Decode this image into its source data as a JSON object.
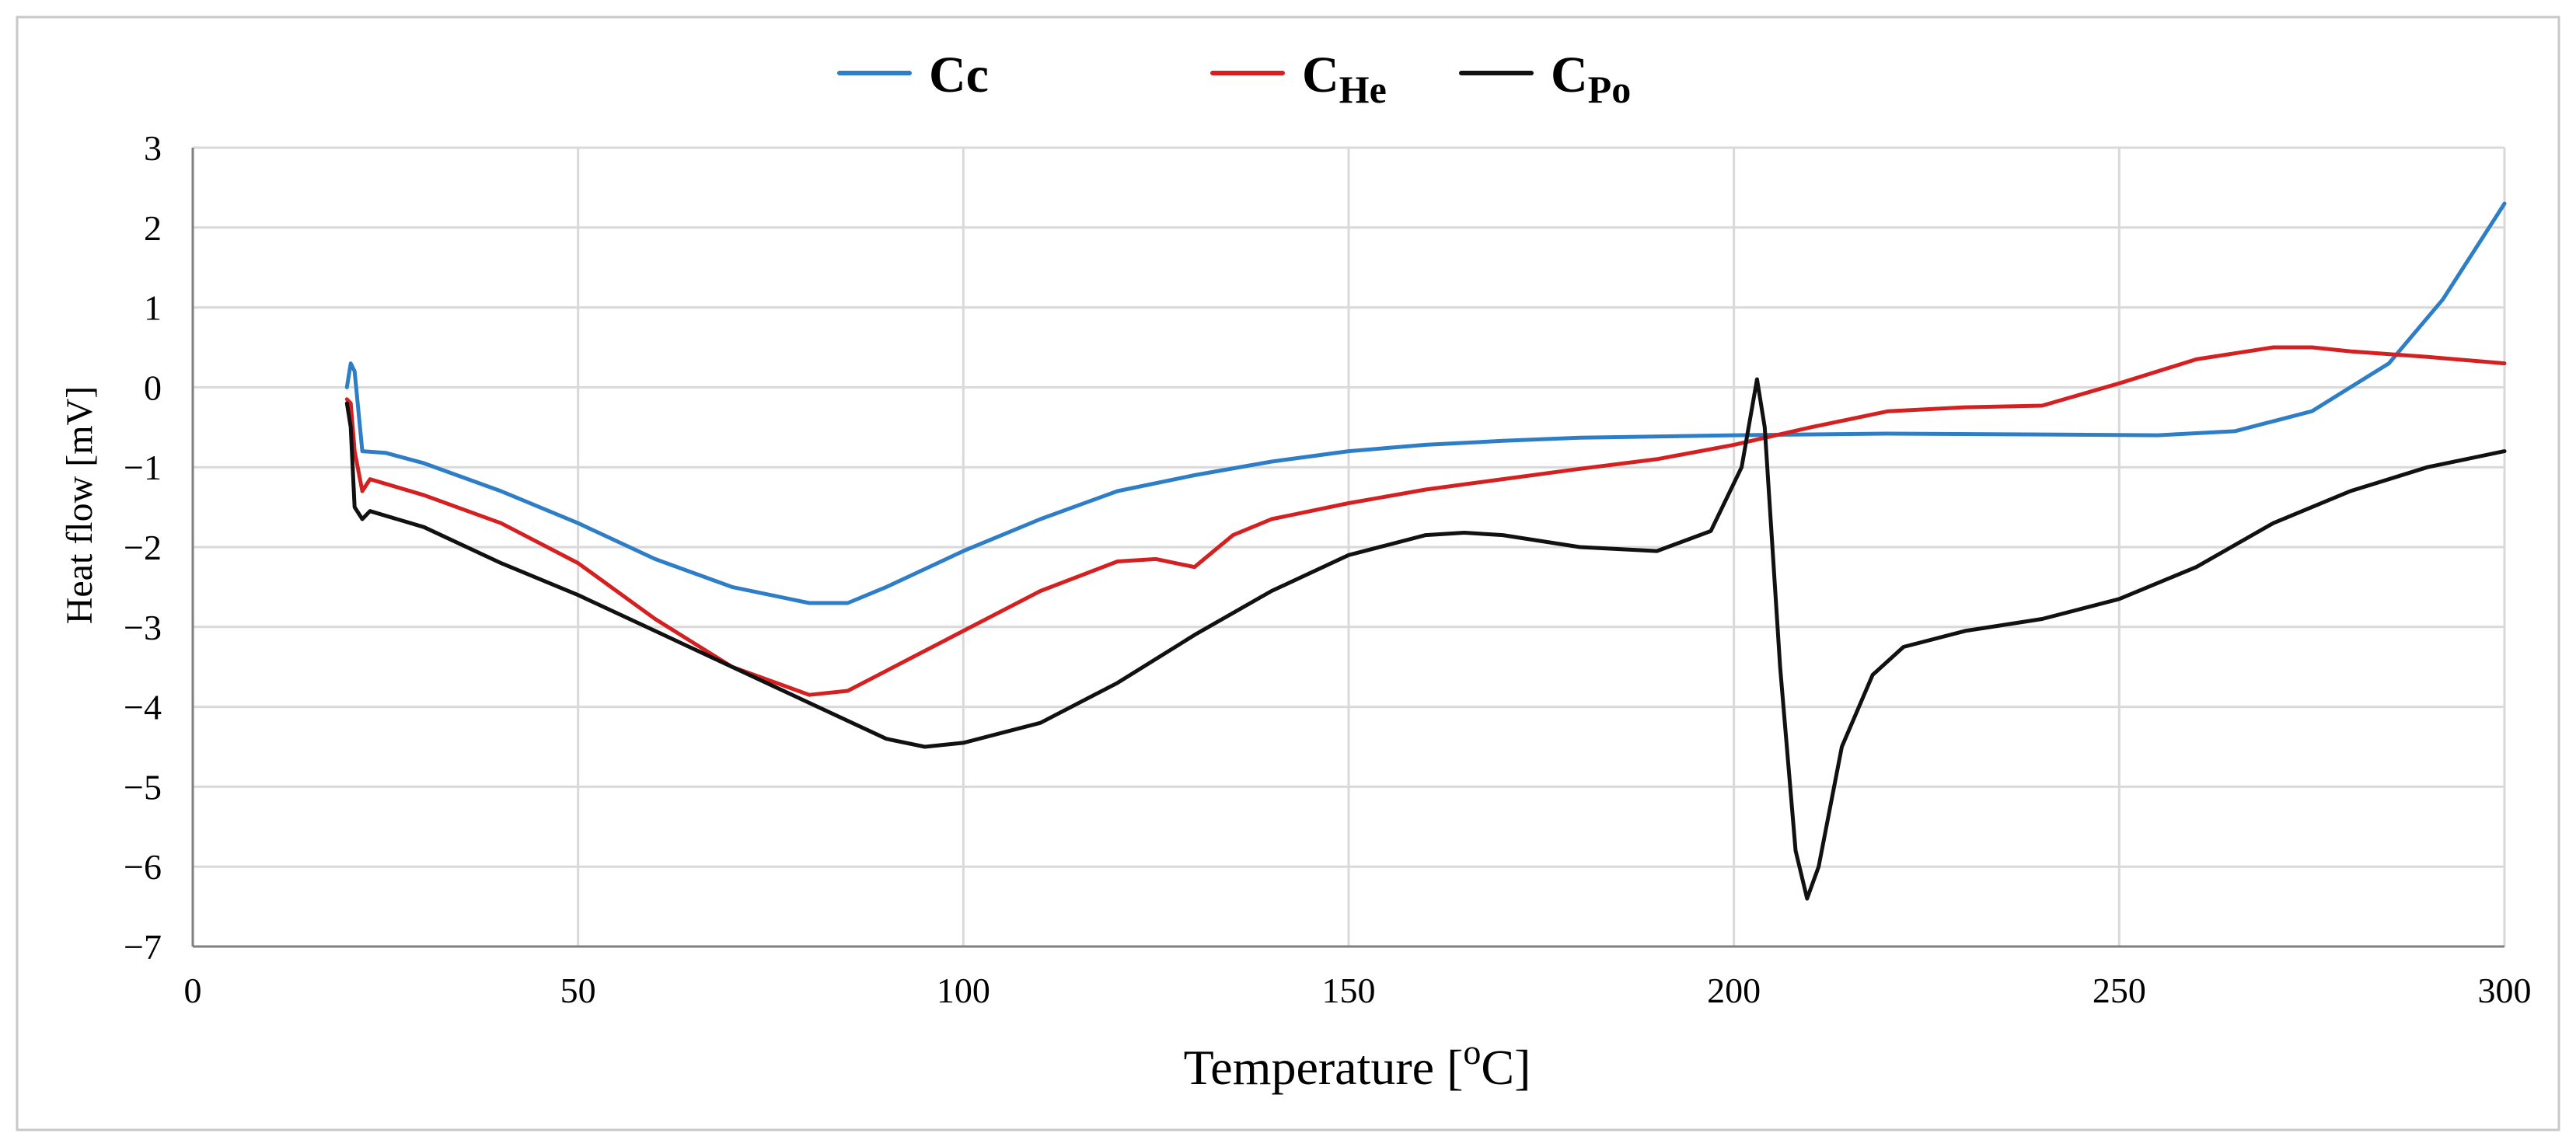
{
  "chart_data": {
    "type": "line",
    "title": "",
    "xlabel": "Temperature [",
    "xlabel_sup": "o",
    "xlabel_unit": "C]",
    "ylabel": "Heat flow [mV]",
    "xlim": [
      0,
      300
    ],
    "ylim": [
      -7,
      3
    ],
    "x_ticks": [
      "0",
      "50",
      "100",
      "150",
      "200",
      "250",
      "300"
    ],
    "y_ticks": [
      "3",
      "2",
      "1",
      "0",
      "−1",
      "−2",
      "−3",
      "−4",
      "−5",
      "−6",
      "−7"
    ],
    "grid": true,
    "legend_position": "top",
    "series": [
      {
        "name": "Cc",
        "name_main": "Cc",
        "name_sub": "",
        "color": "#2e7ec7",
        "points": [
          [
            20,
            0.0
          ],
          [
            20.5,
            0.3
          ],
          [
            21,
            0.2
          ],
          [
            22,
            -0.8
          ],
          [
            25,
            -0.82
          ],
          [
            30,
            -0.95
          ],
          [
            40,
            -1.3
          ],
          [
            50,
            -1.7
          ],
          [
            60,
            -2.15
          ],
          [
            70,
            -2.5
          ],
          [
            80,
            -2.7
          ],
          [
            85,
            -2.7
          ],
          [
            90,
            -2.5
          ],
          [
            100,
            -2.05
          ],
          [
            110,
            -1.65
          ],
          [
            120,
            -1.3
          ],
          [
            130,
            -1.1
          ],
          [
            140,
            -0.93
          ],
          [
            150,
            -0.8
          ],
          [
            160,
            -0.72
          ],
          [
            170,
            -0.67
          ],
          [
            180,
            -0.63
          ],
          [
            200,
            -0.6
          ],
          [
            220,
            -0.58
          ],
          [
            240,
            -0.59
          ],
          [
            255,
            -0.6
          ],
          [
            265,
            -0.55
          ],
          [
            275,
            -0.3
          ],
          [
            285,
            0.3
          ],
          [
            292,
            1.1
          ],
          [
            300,
            2.3
          ]
        ]
      },
      {
        "name": "CHe",
        "name_main": "C",
        "name_sub": "He",
        "color": "#d42020",
        "points": [
          [
            20,
            -0.15
          ],
          [
            20.5,
            -0.2
          ],
          [
            21,
            -0.8
          ],
          [
            22,
            -1.3
          ],
          [
            23,
            -1.15
          ],
          [
            30,
            -1.35
          ],
          [
            40,
            -1.7
          ],
          [
            50,
            -2.2
          ],
          [
            60,
            -2.9
          ],
          [
            70,
            -3.5
          ],
          [
            80,
            -3.85
          ],
          [
            85,
            -3.8
          ],
          [
            90,
            -3.55
          ],
          [
            100,
            -3.05
          ],
          [
            110,
            -2.55
          ],
          [
            120,
            -2.18
          ],
          [
            125,
            -2.15
          ],
          [
            130,
            -2.25
          ],
          [
            135,
            -1.85
          ],
          [
            140,
            -1.65
          ],
          [
            150,
            -1.45
          ],
          [
            160,
            -1.28
          ],
          [
            170,
            -1.15
          ],
          [
            180,
            -1.02
          ],
          [
            190,
            -0.9
          ],
          [
            200,
            -0.72
          ],
          [
            210,
            -0.5
          ],
          [
            220,
            -0.3
          ],
          [
            230,
            -0.25
          ],
          [
            240,
            -0.23
          ],
          [
            250,
            0.05
          ],
          [
            260,
            0.35
          ],
          [
            270,
            0.5
          ],
          [
            275,
            0.5
          ],
          [
            280,
            0.45
          ],
          [
            290,
            0.38
          ],
          [
            300,
            0.3
          ]
        ]
      },
      {
        "name": "CPo",
        "name_main": "C",
        "name_sub": "Po",
        "color": "#111111",
        "points": [
          [
            20,
            -0.2
          ],
          [
            20.5,
            -0.5
          ],
          [
            21,
            -1.5
          ],
          [
            22,
            -1.65
          ],
          [
            23,
            -1.55
          ],
          [
            30,
            -1.75
          ],
          [
            40,
            -2.2
          ],
          [
            50,
            -2.6
          ],
          [
            60,
            -3.05
          ],
          [
            70,
            -3.5
          ],
          [
            80,
            -3.95
          ],
          [
            90,
            -4.4
          ],
          [
            95,
            -4.5
          ],
          [
            100,
            -4.45
          ],
          [
            110,
            -4.2
          ],
          [
            120,
            -3.7
          ],
          [
            130,
            -3.1
          ],
          [
            140,
            -2.55
          ],
          [
            150,
            -2.1
          ],
          [
            160,
            -1.85
          ],
          [
            165,
            -1.82
          ],
          [
            170,
            -1.85
          ],
          [
            180,
            -2.0
          ],
          [
            190,
            -2.05
          ],
          [
            197,
            -1.8
          ],
          [
            201,
            -1.0
          ],
          [
            203,
            0.1
          ],
          [
            204,
            -0.5
          ],
          [
            206,
            -3.5
          ],
          [
            208,
            -5.8
          ],
          [
            209.5,
            -6.4
          ],
          [
            211,
            -6.0
          ],
          [
            214,
            -4.5
          ],
          [
            218,
            -3.6
          ],
          [
            222,
            -3.25
          ],
          [
            230,
            -3.05
          ],
          [
            240,
            -2.9
          ],
          [
            250,
            -2.65
          ],
          [
            260,
            -2.25
          ],
          [
            270,
            -1.7
          ],
          [
            280,
            -1.3
          ],
          [
            290,
            -1.0
          ],
          [
            300,
            -0.8
          ]
        ]
      }
    ]
  }
}
